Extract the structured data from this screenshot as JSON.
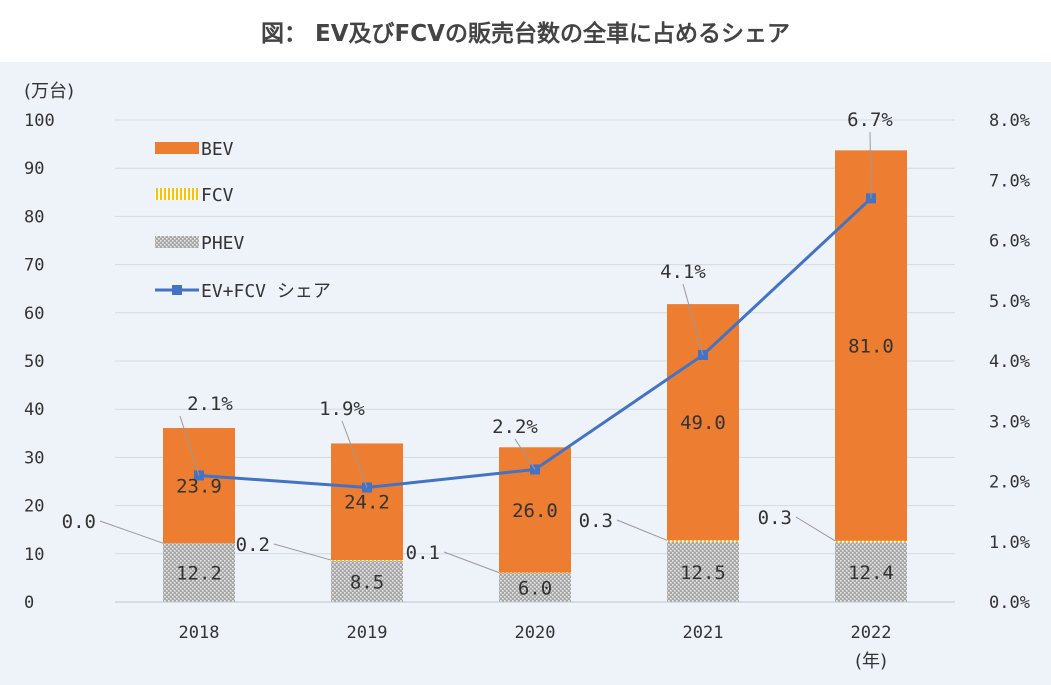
{
  "chart_data": {
    "type": "bar",
    "title": "図： EV及びFCVの販売台数の全車に占めるシェア",
    "ylabel": "(万台)",
    "xlabel": "(年)",
    "categories": [
      "2018",
      "2019",
      "2020",
      "2021",
      "2022"
    ],
    "ylim": [
      0,
      100
    ],
    "y2lim": [
      0,
      8
    ],
    "yticks": [
      "0",
      "10",
      "20",
      "30",
      "40",
      "50",
      "60",
      "70",
      "80",
      "90",
      "100"
    ],
    "y2ticks": [
      "0.0%",
      "1.0%",
      "2.0%",
      "3.0%",
      "4.0%",
      "5.0%",
      "6.0%",
      "7.0%",
      "8.0%"
    ],
    "stacked": true,
    "series": [
      {
        "name": "PHEV",
        "type": "bar",
        "color": "#a6a6a6",
        "values": [
          12.2,
          8.5,
          6.0,
          12.5,
          12.4
        ],
        "labels": [
          "12.2",
          "8.5",
          "6.0",
          "12.5",
          "12.4"
        ]
      },
      {
        "name": "FCV",
        "type": "bar",
        "color": "#ffc000",
        "values": [
          0.0,
          0.2,
          0.1,
          0.3,
          0.3
        ],
        "labels": [
          "0.0",
          "0.2",
          "0.1",
          "0.3",
          "0.3"
        ]
      },
      {
        "name": "BEV",
        "type": "bar",
        "color": "#ed7d31",
        "values": [
          23.9,
          24.2,
          26.0,
          49.0,
          81.0
        ],
        "labels": [
          "23.9",
          "24.2",
          "26.0",
          "49.0",
          "81.0"
        ]
      },
      {
        "name": "EV+FCV シェア",
        "type": "line",
        "axis": "right",
        "color": "#4472c4",
        "values": [
          2.1,
          1.9,
          2.2,
          4.1,
          6.7
        ],
        "labels": [
          "2.1%",
          "1.9%",
          "2.2%",
          "4.1%",
          "6.7%"
        ]
      }
    ],
    "legend": [
      "BEV",
      "FCV",
      "PHEV",
      "EV+FCV シェア"
    ],
    "legend_position": "top-left",
    "grid": true
  }
}
